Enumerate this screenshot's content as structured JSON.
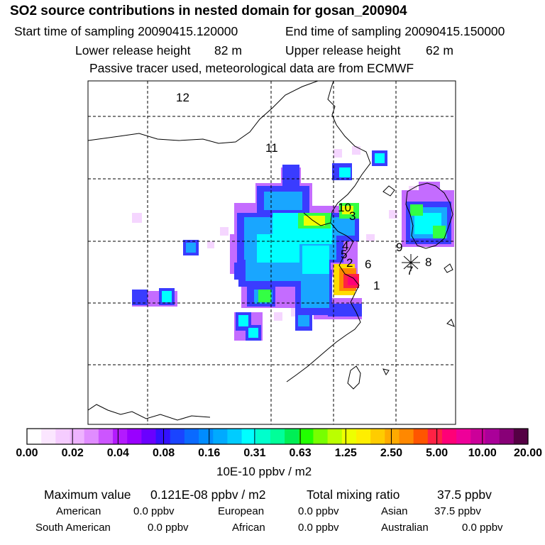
{
  "title": "SO2 source contributions in nested domain for gosan_200904",
  "sampling": {
    "start_label": "Start time of sampling 20090415.120000",
    "end_label": "End time of sampling 20090415.150000"
  },
  "release": {
    "lower_label": "Lower release height",
    "lower_value": "82 m",
    "upper_label": "Upper release height",
    "upper_value": "62 m"
  },
  "tracer_note": "Passive tracer used, meteorological data are from ECMWF",
  "map": {
    "region_labels": [
      "12",
      "11",
      "10",
      "3",
      "4",
      "5",
      "2",
      "6",
      "1",
      "9",
      "8",
      "7"
    ],
    "receptor_marker": "star-marker"
  },
  "colorbar": {
    "ticks": [
      "0.00",
      "0.02",
      "0.04",
      "0.08",
      "0.16",
      "0.31",
      "0.63",
      "1.25",
      "2.50",
      "5.00",
      "10.00",
      "20.00"
    ],
    "unit": "10E-10 ppbv / m2",
    "colors": [
      "#ffffff",
      "#fbe6ff",
      "#f5ccff",
      "#eeb3ff",
      "#e08cff",
      "#cc55ff",
      "#b31aff",
      "#9900ff",
      "#6a00ff",
      "#3311ff",
      "#1a44ff",
      "#0a6aff",
      "#008cff",
      "#00aaff",
      "#00ccff",
      "#00ffff",
      "#00ffcc",
      "#00ff99",
      "#00ee55",
      "#22ff00",
      "#77ff00",
      "#bbff00",
      "#eeff00",
      "#ffee00",
      "#ffcc00",
      "#ffaa00",
      "#ff8800",
      "#ff5500",
      "#ff2244",
      "#ff0077",
      "#ee0099",
      "#cc0099",
      "#aa0099",
      "#880077",
      "#550044"
    ]
  },
  "summary": {
    "max_label": "Maximum value",
    "max_value": "0.121E-08 ppbv / m2",
    "total_label": "Total mixing ratio",
    "total_value": "37.5 ppbv",
    "american_label": "American",
    "american_value": "0.0 ppbv",
    "european_label": "European",
    "european_value": "0.0 ppbv",
    "asian_label": "Asian",
    "asian_value": "37.5 ppbv",
    "south_american_label": "South American",
    "south_american_value": "0.0 ppbv",
    "african_label": "African",
    "african_value": "0.0 ppbv",
    "australian_label": "Australian",
    "australian_value": "0.0 ppbv"
  }
}
